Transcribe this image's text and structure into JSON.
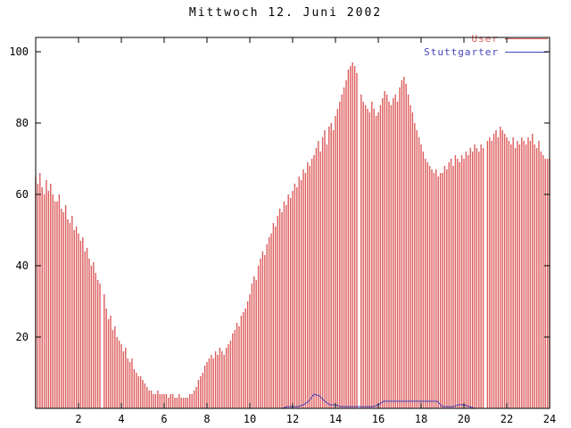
{
  "title": "Mittwoch 12. Juni 2002",
  "chart_data": {
    "type": "bar",
    "title": "Mittwoch 12. Juni 2002",
    "xlabel": "",
    "ylabel": "",
    "xlim": [
      0,
      24
    ],
    "ylim": [
      0,
      104
    ],
    "x_ticks": [
      2,
      4,
      6,
      8,
      10,
      12,
      14,
      16,
      18,
      20,
      22,
      24
    ],
    "y_ticks": [
      20,
      40,
      60,
      80,
      100
    ],
    "grid": false,
    "legend_position": "top-right",
    "frame_color": "#000000",
    "series": [
      {
        "name": "User",
        "type": "impulses",
        "color": "#dd5c5c",
        "x_start": 0,
        "x_step": 0.1,
        "values": [
          65,
          63,
          66,
          62,
          60,
          64,
          61,
          63,
          60,
          58,
          58,
          60,
          56,
          55,
          57,
          53,
          52,
          54,
          50,
          51,
          49,
          47,
          48,
          44,
          45,
          42,
          40,
          41,
          38,
          36,
          35,
          null,
          32,
          28,
          25,
          26,
          22,
          23,
          20,
          19,
          18,
          16,
          17,
          14,
          13,
          14,
          11,
          10,
          9,
          9,
          8,
          7,
          6,
          5,
          5,
          4,
          4,
          5,
          4,
          4,
          4,
          4,
          3,
          4,
          4,
          3,
          3,
          4,
          3,
          3,
          3,
          3,
          4,
          4,
          5,
          6,
          8,
          9,
          10,
          12,
          13,
          14,
          15,
          14,
          16,
          15,
          17,
          16,
          15,
          17,
          18,
          19,
          21,
          22,
          24,
          23,
          26,
          27,
          28,
          30,
          32,
          35,
          37,
          36,
          40,
          42,
          44,
          43,
          46,
          48,
          49,
          52,
          51,
          54,
          56,
          55,
          58,
          57,
          60,
          59,
          61,
          63,
          62,
          65,
          64,
          67,
          66,
          69,
          68,
          70,
          71,
          73,
          75,
          72,
          76,
          78,
          74,
          79,
          80,
          78,
          82,
          84,
          86,
          88,
          90,
          92,
          95,
          96,
          97,
          96,
          94,
          null,
          88,
          86,
          85,
          84,
          83,
          86,
          84,
          82,
          83,
          85,
          87,
          89,
          88,
          86,
          85,
          87,
          88,
          86,
          90,
          92,
          93,
          91,
          88,
          85,
          83,
          80,
          78,
          76,
          74,
          72,
          70,
          69,
          68,
          67,
          66,
          67,
          65,
          66,
          66,
          68,
          67,
          69,
          70,
          68,
          71,
          70,
          69,
          71,
          70,
          72,
          71,
          73,
          72,
          74,
          73,
          72,
          74,
          73,
          null,
          75,
          76,
          75,
          77,
          78,
          76,
          79,
          78,
          77,
          76,
          75,
          74,
          76,
          73,
          75,
          74,
          76,
          75,
          74,
          76,
          75,
          77,
          74,
          73,
          75,
          72,
          71,
          70,
          70,
          70
        ]
      },
      {
        "name": "Stuttgarter",
        "type": "line",
        "color": "#4444bb",
        "x_start": 0,
        "x_step": 0.25,
        "values": [
          0,
          0,
          0,
          0,
          0,
          0,
          0,
          0,
          0,
          0,
          0,
          0,
          0,
          0,
          0,
          0,
          0,
          0,
          0,
          0,
          0,
          0,
          0,
          0,
          0,
          0,
          0,
          0,
          0,
          0,
          0,
          0,
          0,
          0,
          0,
          0,
          0,
          0,
          0,
          0,
          0,
          0,
          0,
          0,
          0,
          0,
          0,
          0.5,
          0.5,
          0.5,
          1,
          2,
          4,
          3.5,
          2,
          1,
          1,
          0.5,
          0.5,
          0.5,
          0.5,
          0.5,
          0.5,
          0.5,
          1,
          2,
          2,
          2,
          2,
          2,
          2,
          2,
          2,
          2,
          2,
          2,
          0.5,
          0.5,
          0.5,
          1,
          1,
          0.5,
          0,
          0,
          0,
          0,
          0,
          0,
          0,
          0,
          0,
          0,
          0,
          0,
          0,
          0,
          0
        ]
      }
    ]
  }
}
